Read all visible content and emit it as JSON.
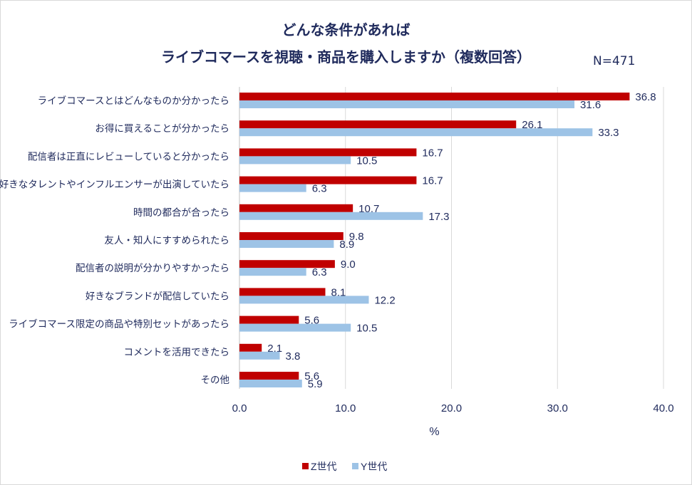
{
  "chart_data": {
    "type": "bar",
    "orientation": "horizontal",
    "title": "どんな条件があれば",
    "subtitle": "ライブコマースを視聴・商品を購入しますか（複数回答）",
    "annotation": "N=471",
    "xlabel": "%",
    "ylabel": "",
    "xlim": [
      0,
      40
    ],
    "xticks": [
      "0.0",
      "10.0",
      "20.0",
      "30.0",
      "40.0"
    ],
    "grid": true,
    "legend_position": "bottom",
    "categories": [
      "ライブコマースとはどんなものか分かったら",
      "お得に買えることが分かったら",
      "配信者は正直にレビューしていると分かったら",
      "好きなタレントやインフルエンサーが出演していたら",
      "時間の都合が合ったら",
      "友人・知人にすすめられたら",
      "配信者の説明が分かりやすかったら",
      "好きなブランドが配信していたら",
      "ライブコマース限定の商品や特別セットがあったら",
      "コメントを活用できたら",
      "その他"
    ],
    "series": [
      {
        "name": "Z世代",
        "color": "#c00000",
        "values": [
          36.8,
          26.1,
          16.7,
          16.7,
          10.7,
          9.8,
          9.0,
          8.1,
          5.6,
          2.1,
          5.6
        ]
      },
      {
        "name": "Y世代",
        "color": "#9dc3e6",
        "values": [
          31.6,
          33.3,
          10.5,
          6.3,
          17.3,
          8.9,
          6.3,
          12.2,
          10.5,
          3.8,
          5.9
        ]
      }
    ]
  }
}
